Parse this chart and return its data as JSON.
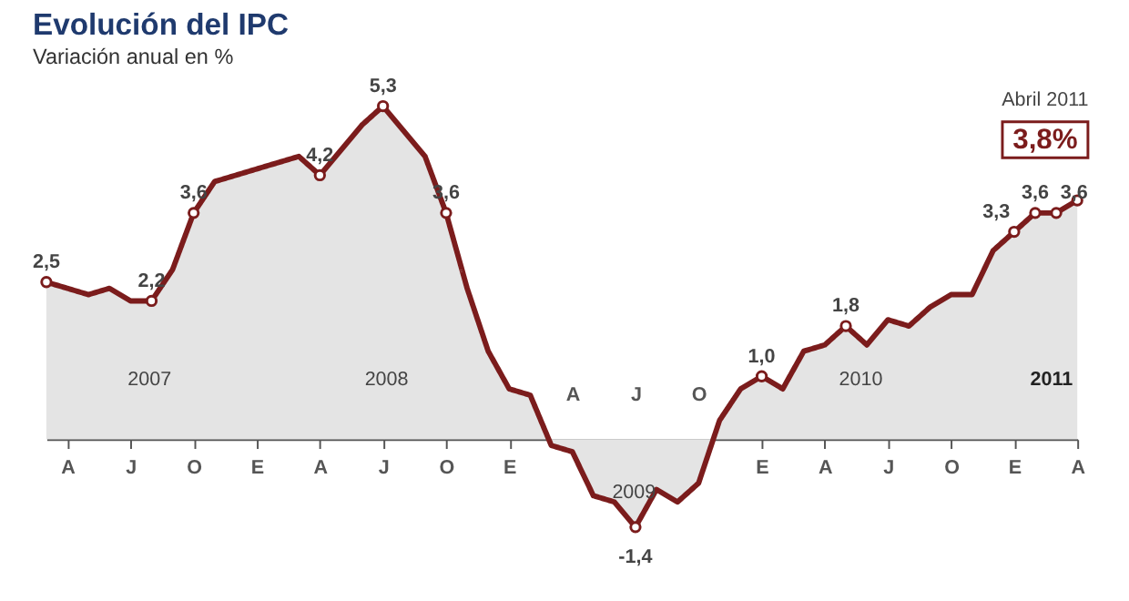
{
  "chart_data": {
    "type": "area",
    "title": "Evolución del IPC",
    "subtitle": "Variación anual en %",
    "categories": [
      null,
      "A",
      null,
      null,
      "J",
      null,
      null,
      "O",
      null,
      null,
      "E",
      null,
      null,
      "A",
      null,
      null,
      "J",
      null,
      null,
      "O",
      null,
      null,
      "E",
      null,
      null,
      "A",
      null,
      null,
      "J",
      null,
      null,
      "O",
      null,
      null,
      "E",
      null,
      null,
      "A",
      null,
      null,
      "J",
      null,
      null,
      "O",
      null,
      null,
      "E",
      null,
      null,
      "A"
    ],
    "series": [
      {
        "color": "#7b1c1c",
        "values": [
          2.5,
          2.4,
          2.3,
          2.4,
          2.2,
          2.2,
          2.7,
          3.6,
          4.1,
          4.2,
          4.3,
          4.4,
          4.5,
          4.2,
          4.6,
          5.0,
          5.3,
          4.9,
          4.5,
          3.6,
          2.4,
          1.4,
          0.8,
          0.7,
          -0.1,
          -0.2,
          -0.9,
          -1.0,
          -1.4,
          -0.8,
          -1.0,
          -0.7,
          0.3,
          0.8,
          1.0,
          0.8,
          1.4,
          1.5,
          1.8,
          1.5,
          1.9,
          1.8,
          2.1,
          2.3,
          2.3,
          3.0,
          3.3,
          3.6,
          3.6,
          3.8
        ],
        "value_labels": [
          "2,5",
          null,
          null,
          null,
          null,
          "2,2",
          null,
          "3,6",
          null,
          null,
          null,
          null,
          null,
          "4,2",
          null,
          null,
          "5,3",
          null,
          null,
          "3,6",
          null,
          null,
          null,
          null,
          null,
          null,
          null,
          null,
          "-1,4",
          null,
          null,
          null,
          null,
          null,
          "1,0",
          null,
          null,
          null,
          "1,8",
          null,
          null,
          null,
          null,
          null,
          null,
          null,
          "3,3",
          "3,6",
          "3,6",
          "3,8%"
        ]
      }
    ],
    "tick_labels": "x",
    "grid": false,
    "line_style": "solid",
    "annotations": [
      "2007",
      "2008",
      "2009",
      "2010",
      "2011",
      "Abril 2011"
    ]
  }
}
